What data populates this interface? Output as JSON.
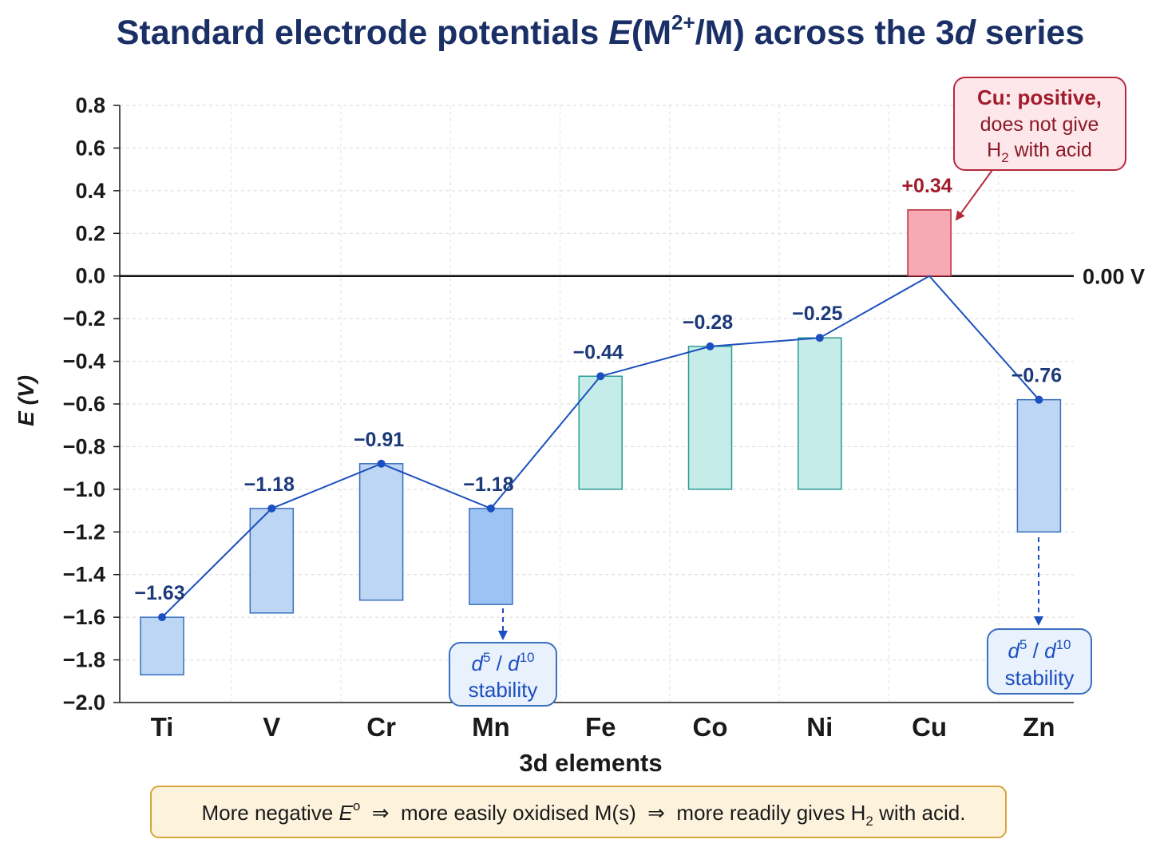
{
  "title": {
    "prefix": "Standard electrode potentials ",
    "var": "E",
    "paren_open": "(M",
    "sup": "2+",
    "rest": "/M) across the 3",
    "d": "d",
    "suffix": " series"
  },
  "colors": {
    "title": "#1a2f66",
    "blue_bar": "#bcd6f4",
    "blue_bar_dark": "#9cc3f4",
    "blue_stroke": "#3a6fc0",
    "teal_bar": "#c6ece9",
    "teal_stroke": "#2a9b93",
    "red_bar": "#f7a9b4",
    "red_stroke": "#b72a3c",
    "line": "#1c4fbf",
    "note_fill": "#fdf3dc",
    "note_stroke": "#d6a43c"
  },
  "chart_data": {
    "type": "bar",
    "xlabel": "3d elements",
    "ylabel": "E (V)",
    "ylim": [
      -2.0,
      0.8
    ],
    "yticks": [
      "0.8",
      "0.6",
      "0.4",
      "0.2",
      "0.0",
      "−0.2",
      "−0.4",
      "−0.6",
      "−0.8",
      "−1.0",
      "−1.2",
      "−1.4",
      "−1.6",
      "−1.8",
      "−2.0"
    ],
    "ytick_values": [
      0.8,
      0.6,
      0.4,
      0.2,
      0.0,
      -0.2,
      -0.4,
      -0.6,
      -0.8,
      -1.0,
      -1.2,
      -1.4,
      -1.6,
      -1.8,
      -2.0
    ],
    "grid": true,
    "categories": [
      "Ti",
      "V",
      "Cr",
      "Mn",
      "Fe",
      "Co",
      "Ni",
      "Cu",
      "Zn"
    ],
    "values": [
      -1.63,
      -1.18,
      -0.91,
      -1.18,
      -0.44,
      -0.28,
      -0.25,
      0.34,
      -0.76
    ],
    "value_labels": [
      "−1.63",
      "−1.18",
      "−0.91",
      "−1.18",
      "−0.44",
      "−0.28",
      "−0.25",
      "+0.34",
      "−0.76"
    ],
    "bar_ranges": [
      [
        -1.87,
        -1.6
      ],
      [
        -1.58,
        -1.09
      ],
      [
        -1.52,
        -0.88
      ],
      [
        -1.54,
        -1.09
      ],
      [
        -1.0,
        -0.47
      ],
      [
        -1.0,
        -0.33
      ],
      [
        -1.0,
        -0.29
      ],
      [
        0.0,
        0.31
      ],
      [
        -1.2,
        -0.58
      ]
    ],
    "point_values": [
      -1.6,
      -1.09,
      -0.88,
      -1.09,
      -0.47,
      -0.33,
      -0.29,
      0.0,
      -0.58
    ],
    "bar_styles": [
      "blue",
      "blue",
      "blue",
      "blue-dark",
      "teal",
      "teal",
      "teal",
      "red",
      "blue"
    ],
    "reference_line": {
      "value": 0.0,
      "label": "0.00 V"
    }
  },
  "annotations": {
    "cu_note": {
      "line1": "Cu: positive,",
      "line2": "does not give",
      "line3_a": "H",
      "line3_sub": "2",
      "line3_b": " with acid"
    },
    "stability_d1": "d",
    "stability_sup1": "5",
    "stability_mid": " / ",
    "stability_d2": "d",
    "stability_sup2": "10",
    "stability_word": "stability"
  },
  "footer": {
    "p1": "More negative ",
    "e": "E",
    "deg": "o",
    "p2": "  ⇒  more easily oxidised M(s)  ⇒  more readily gives H",
    "sub": "2",
    "p3": " with acid."
  }
}
